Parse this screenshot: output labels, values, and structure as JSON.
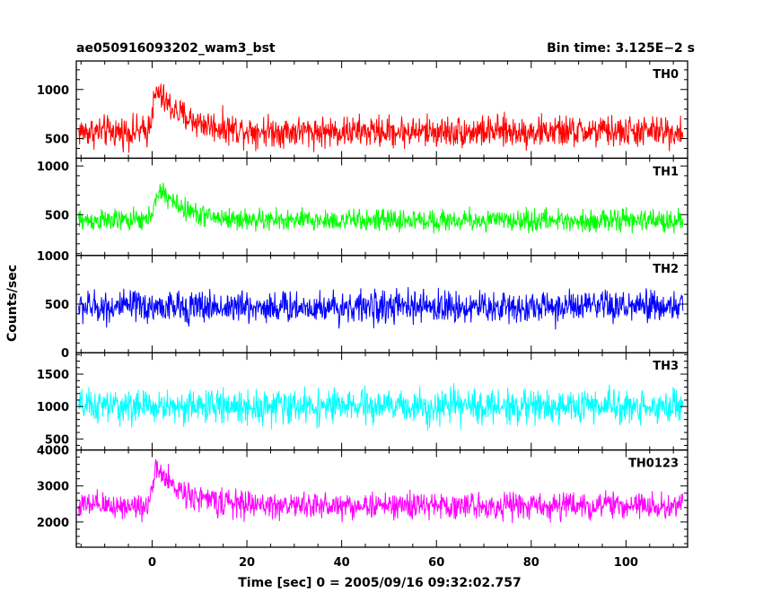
{
  "header": {
    "title": "ae050916093202_wam3_bst",
    "bin_time": "Bin time: 3.125E−2 s"
  },
  "chart_data": {
    "type": "line",
    "xlabel": "Time [sec] 0 = 2005/09/16 09:32:02.757",
    "ylabel": "Counts/sec",
    "xlim": [
      -16,
      113
    ],
    "data_x_range": [
      -15.5,
      112
    ],
    "x_ticks": [
      0,
      20,
      40,
      60,
      80,
      100
    ],
    "x_tick_labels": [
      "0",
      "20",
      "40",
      "60",
      "80",
      "100"
    ],
    "panels": [
      {
        "name": "TH0",
        "color": "#ff0000",
        "ylim": [
          300,
          1290
        ],
        "y_ticks": [
          500,
          1000
        ],
        "y_tick_labels": [
          "500",
          "1000"
        ],
        "baseline": 570,
        "noise": 430,
        "burst": {
          "peak": 980,
          "t_start": -1,
          "t_peak": 1,
          "decay": 6
        }
      },
      {
        "name": "TH1",
        "color": "#00ff00",
        "ylim": [
          80,
          1080
        ],
        "y_ticks": [
          500,
          1000
        ],
        "y_tick_labels": [
          "500",
          "1000"
        ],
        "baseline": 440,
        "noise": 300,
        "burst": {
          "peak": 750,
          "t_start": -1,
          "t_peak": 2,
          "decay": 5
        }
      },
      {
        "name": "TH2",
        "color": "#0000ff",
        "ylim": [
          0,
          1000
        ],
        "y_ticks": [
          0,
          500,
          1000
        ],
        "y_tick_labels": [
          "0",
          "500",
          "1000"
        ],
        "baseline": 470,
        "noise": 450,
        "burst": null
      },
      {
        "name": "TH3",
        "color": "#00ffff",
        "ylim": [
          330,
          1830
        ],
        "y_ticks": [
          500,
          1000,
          1500
        ],
        "y_tick_labels": [
          "500",
          "1000",
          "1500"
        ],
        "baseline": 1000,
        "noise": 700,
        "burst": null
      },
      {
        "name": "TH0123",
        "color": "#ff00ff",
        "ylim": [
          1300,
          4000
        ],
        "y_ticks": [
          2000,
          3000,
          4000
        ],
        "y_tick_labels": [
          "2000",
          "3000",
          "4000"
        ],
        "baseline": 2450,
        "noise": 1000,
        "burst": {
          "peak": 3450,
          "t_start": -1,
          "t_peak": 1,
          "decay": 6
        }
      }
    ]
  }
}
